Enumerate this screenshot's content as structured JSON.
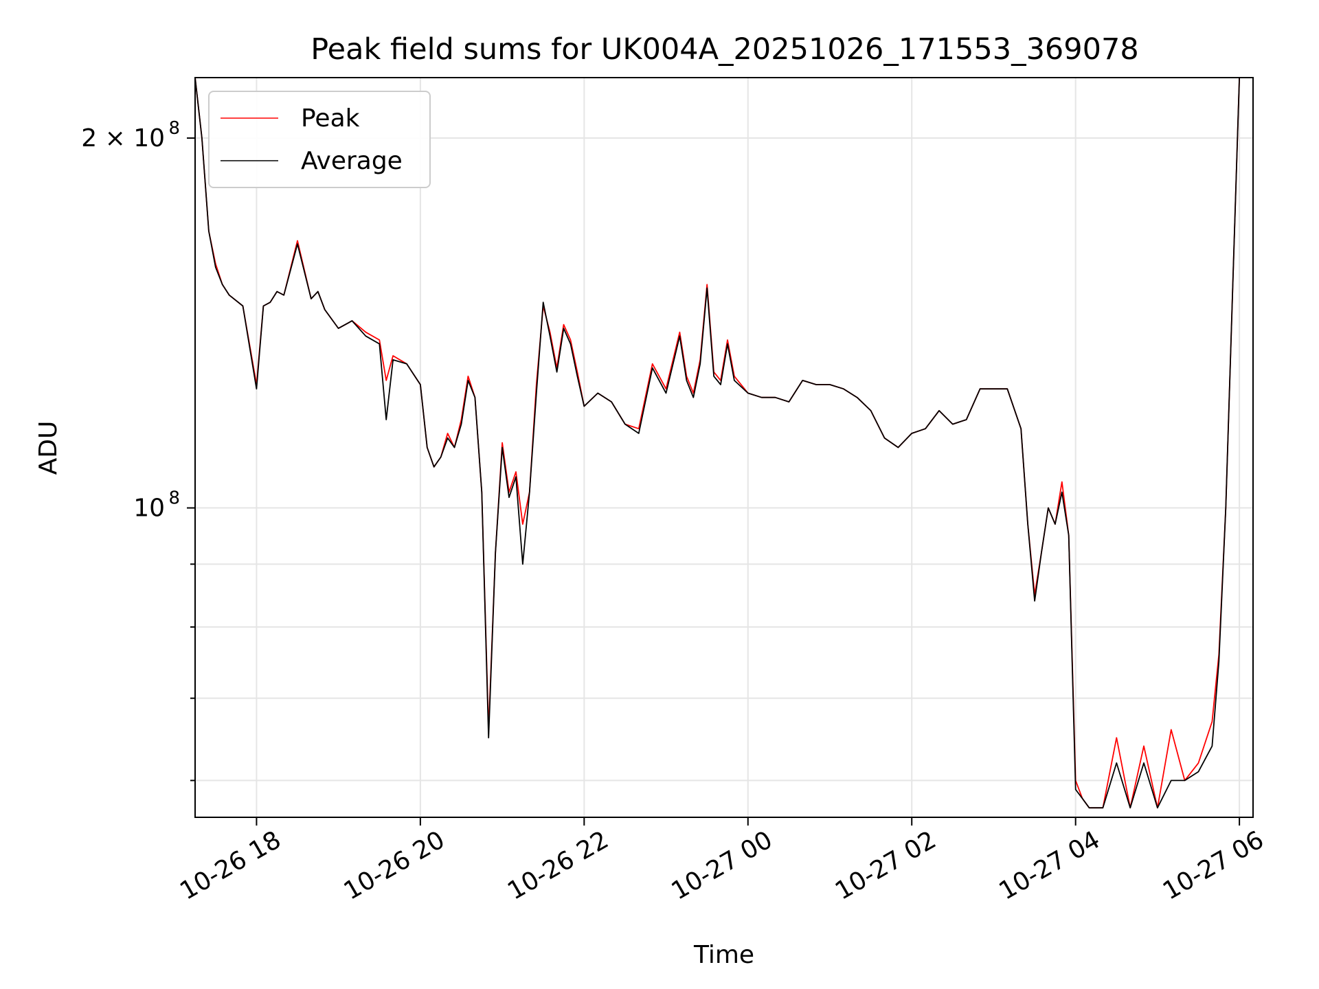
{
  "chart_data": {
    "type": "line",
    "title": "Peak field sums for UK004A_20251026_171553_369078",
    "xlabel": "Time",
    "ylabel": "ADU",
    "y_scale": "log",
    "xlim": [
      "2025-10-26 17:15",
      "2025-10-27 06:10"
    ],
    "ylim": [
      56000000,
      224000000
    ],
    "x_ticks": [
      {
        "t": "2025-10-26 18:00",
        "label": "10-26 18"
      },
      {
        "t": "2025-10-26 20:00",
        "label": "10-26 20"
      },
      {
        "t": "2025-10-26 22:00",
        "label": "10-26 22"
      },
      {
        "t": "2025-10-27 00:00",
        "label": "10-27 00"
      },
      {
        "t": "2025-10-27 02:00",
        "label": "10-27 02"
      },
      {
        "t": "2025-10-27 04:00",
        "label": "10-27 04"
      },
      {
        "t": "2025-10-27 06:00",
        "label": "10-27 06"
      }
    ],
    "y_major_ticks": [
      {
        "value": 100000000,
        "label": "10",
        "sup": "8"
      },
      {
        "value": 200000000,
        "label": "2 × 10",
        "sup": "8"
      }
    ],
    "y_minor_ticks": [
      60000000,
      70000000,
      80000000,
      90000000
    ],
    "grid": true,
    "legend_position": "top-left",
    "x": [
      "2025-10-26 17:15",
      "2025-10-26 17:20",
      "2025-10-26 17:25",
      "2025-10-26 17:30",
      "2025-10-26 17:35",
      "2025-10-26 17:40",
      "2025-10-26 17:50",
      "2025-10-26 18:00",
      "2025-10-26 18:05",
      "2025-10-26 18:10",
      "2025-10-26 18:15",
      "2025-10-26 18:20",
      "2025-10-26 18:30",
      "2025-10-26 18:40",
      "2025-10-26 18:45",
      "2025-10-26 18:50",
      "2025-10-26 19:00",
      "2025-10-26 19:10",
      "2025-10-26 19:20",
      "2025-10-26 19:30",
      "2025-10-26 19:35",
      "2025-10-26 19:40",
      "2025-10-26 19:50",
      "2025-10-26 20:00",
      "2025-10-26 20:05",
      "2025-10-26 20:10",
      "2025-10-26 20:15",
      "2025-10-26 20:20",
      "2025-10-26 20:25",
      "2025-10-26 20:30",
      "2025-10-26 20:35",
      "2025-10-26 20:40",
      "2025-10-26 20:45",
      "2025-10-26 20:50",
      "2025-10-26 20:55",
      "2025-10-26 21:00",
      "2025-10-26 21:05",
      "2025-10-26 21:10",
      "2025-10-26 21:15",
      "2025-10-26 21:20",
      "2025-10-26 21:25",
      "2025-10-26 21:30",
      "2025-10-26 21:35",
      "2025-10-26 21:40",
      "2025-10-26 21:45",
      "2025-10-26 21:50",
      "2025-10-26 21:55",
      "2025-10-26 22:00",
      "2025-10-26 22:10",
      "2025-10-26 22:20",
      "2025-10-26 22:30",
      "2025-10-26 22:40",
      "2025-10-26 22:50",
      "2025-10-26 23:00",
      "2025-10-26 23:10",
      "2025-10-26 23:15",
      "2025-10-26 23:20",
      "2025-10-26 23:25",
      "2025-10-26 23:30",
      "2025-10-26 23:35",
      "2025-10-26 23:40",
      "2025-10-26 23:45",
      "2025-10-26 23:50",
      "2025-10-27 00:00",
      "2025-10-27 00:10",
      "2025-10-27 00:20",
      "2025-10-27 00:30",
      "2025-10-27 00:40",
      "2025-10-27 00:50",
      "2025-10-27 01:00",
      "2025-10-27 01:10",
      "2025-10-27 01:20",
      "2025-10-27 01:30",
      "2025-10-27 01:40",
      "2025-10-27 01:50",
      "2025-10-27 02:00",
      "2025-10-27 02:10",
      "2025-10-27 02:20",
      "2025-10-27 02:30",
      "2025-10-27 02:40",
      "2025-10-27 02:50",
      "2025-10-27 03:00",
      "2025-10-27 03:10",
      "2025-10-27 03:20",
      "2025-10-27 03:25",
      "2025-10-27 03:30",
      "2025-10-27 03:35",
      "2025-10-27 03:40",
      "2025-10-27 03:45",
      "2025-10-27 03:50",
      "2025-10-27 03:55",
      "2025-10-27 04:00",
      "2025-10-27 04:05",
      "2025-10-27 04:10",
      "2025-10-27 04:20",
      "2025-10-27 04:30",
      "2025-10-27 04:40",
      "2025-10-27 04:50",
      "2025-10-27 05:00",
      "2025-10-27 05:10",
      "2025-10-27 05:20",
      "2025-10-27 05:30",
      "2025-10-27 05:40",
      "2025-10-27 05:45",
      "2025-10-27 05:50",
      "2025-10-27 05:55",
      "2025-10-27 06:00"
    ],
    "series": [
      {
        "name": "Peak",
        "color": "#ff0000",
        "values": [
          224000000,
          200000000,
          168000000,
          158000000,
          152000000,
          149000000,
          146000000,
          126000000,
          146000000,
          147000000,
          150000000,
          149000000,
          165000000,
          148000000,
          150000000,
          145000000,
          140000000,
          142000000,
          139000000,
          137000000,
          127000000,
          133000000,
          131000000,
          126000000,
          112000000,
          108000000,
          110000000,
          115000000,
          112000000,
          118000000,
          128000000,
          123000000,
          103000000,
          66000000,
          92000000,
          113000000,
          103000000,
          107000000,
          97000000,
          103000000,
          126000000,
          146000000,
          139000000,
          130000000,
          141000000,
          137000000,
          129000000,
          121000000,
          124000000,
          122000000,
          117000000,
          116000000,
          131000000,
          125000000,
          139000000,
          128000000,
          124000000,
          132000000,
          152000000,
          129000000,
          127000000,
          137000000,
          128000000,
          124000000,
          123000000,
          123000000,
          122000000,
          127000000,
          126000000,
          126000000,
          125000000,
          123000000,
          120000000,
          114000000,
          112000000,
          115000000,
          116000000,
          120000000,
          117000000,
          118000000,
          125000000,
          125000000,
          125000000,
          116000000,
          97000000,
          85000000,
          92000000,
          100000000,
          97000000,
          105000000,
          95000000,
          60000000,
          58000000,
          57000000,
          57000000,
          65000000,
          57000000,
          64000000,
          57000000,
          66000000,
          60000000,
          62000000,
          67000000,
          76000000,
          100000000,
          150000000,
          224000000
        ]
      },
      {
        "name": "Average",
        "color": "#000000",
        "values": [
          224000000,
          200000000,
          168000000,
          157000000,
          152000000,
          149000000,
          146000000,
          125000000,
          146000000,
          147000000,
          150000000,
          149000000,
          164000000,
          148000000,
          150000000,
          145000000,
          140000000,
          142000000,
          138000000,
          136000000,
          118000000,
          132000000,
          131000000,
          126000000,
          112000000,
          108000000,
          110000000,
          114000000,
          112000000,
          117000000,
          127000000,
          123000000,
          103000000,
          65000000,
          92000000,
          112000000,
          102000000,
          106000000,
          90000000,
          103000000,
          124000000,
          147000000,
          138000000,
          129000000,
          140000000,
          136000000,
          128000000,
          121000000,
          124000000,
          122000000,
          117000000,
          115000000,
          130000000,
          124000000,
          138000000,
          127000000,
          123000000,
          131000000,
          151000000,
          128000000,
          126000000,
          136000000,
          127000000,
          124000000,
          123000000,
          123000000,
          122000000,
          127000000,
          126000000,
          126000000,
          125000000,
          123000000,
          120000000,
          114000000,
          112000000,
          115000000,
          116000000,
          120000000,
          117000000,
          118000000,
          125000000,
          125000000,
          125000000,
          116000000,
          97000000,
          84000000,
          92000000,
          100000000,
          97000000,
          103000000,
          95000000,
          59000000,
          58000000,
          57000000,
          57000000,
          62000000,
          57000000,
          62000000,
          57000000,
          60000000,
          60000000,
          61000000,
          64000000,
          75000000,
          100000000,
          150000000,
          224000000
        ]
      }
    ]
  }
}
